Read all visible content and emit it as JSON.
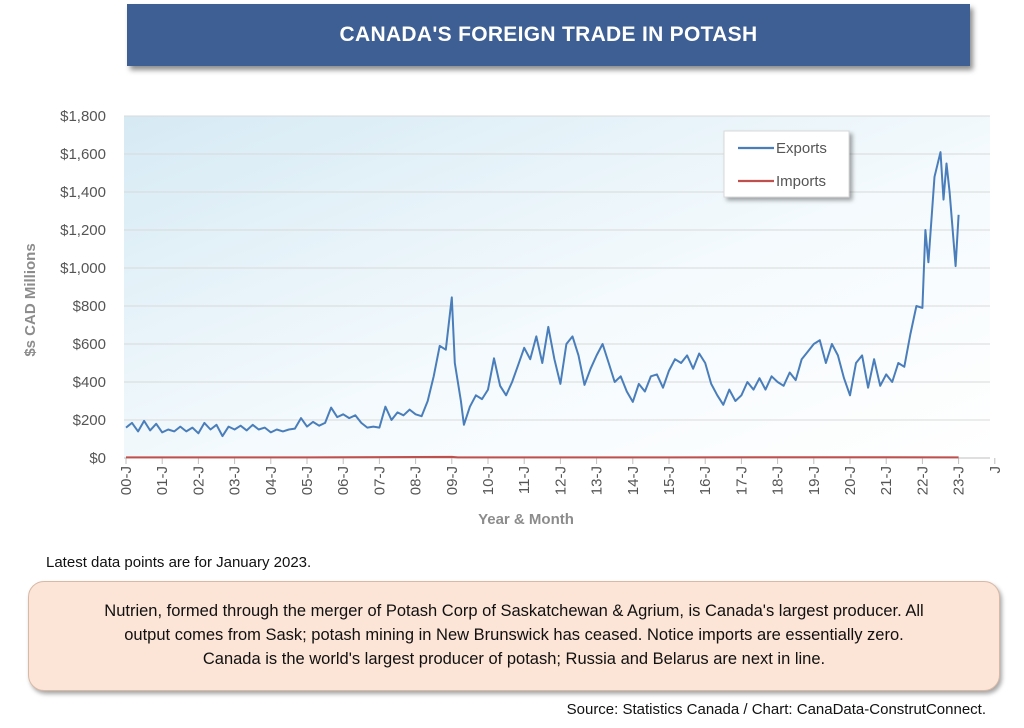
{
  "header": {
    "title": "CANADA'S FOREIGN TRADE IN POTASH"
  },
  "colors": {
    "exports": "#4a7ebb",
    "imports": "#c0504d",
    "banner": "#3d5f94",
    "callout_fill": "#fce4d6"
  },
  "chart_data": {
    "type": "line",
    "title": "CANADA'S FOREIGN TRADE IN POTASH",
    "xlabel": "Year & Month",
    "ylabel": "$s CAD Millions",
    "ylim": [
      0,
      1800
    ],
    "yticks": [
      0,
      200,
      400,
      600,
      800,
      1000,
      1200,
      1400,
      1600,
      1800
    ],
    "ytick_labels": [
      "$0",
      "$200",
      "$400",
      "$600",
      "$800",
      "$1,000",
      "$1,200",
      "$1,400",
      "$1,600",
      "$1,800"
    ],
    "xtick_labels": [
      "00-J",
      "01-J",
      "02-J",
      "03-J",
      "04-J",
      "05-J",
      "06-J",
      "07-J",
      "08-J",
      "09-J",
      "10-J",
      "11-J",
      "12-J",
      "13-J",
      "14-J",
      "15-J",
      "16-J",
      "17-J",
      "18-J",
      "19-J",
      "20-J",
      "21-J",
      "22-J",
      "23-J",
      "J"
    ],
    "grid": "horizontal",
    "legend_position": "top-right",
    "x_range": [
      "2000-01",
      "2023-01"
    ],
    "series": [
      {
        "name": "Exports",
        "color": "#4a7ebb",
        "points": [
          [
            "2000-01",
            160
          ],
          [
            "2000-03",
            185
          ],
          [
            "2000-05",
            140
          ],
          [
            "2000-07",
            195
          ],
          [
            "2000-09",
            145
          ],
          [
            "2000-11",
            180
          ],
          [
            "2001-01",
            135
          ],
          [
            "2001-03",
            150
          ],
          [
            "2001-05",
            140
          ],
          [
            "2001-07",
            165
          ],
          [
            "2001-09",
            140
          ],
          [
            "2001-11",
            160
          ],
          [
            "2002-01",
            130
          ],
          [
            "2002-03",
            185
          ],
          [
            "2002-05",
            150
          ],
          [
            "2002-07",
            175
          ],
          [
            "2002-09",
            115
          ],
          [
            "2002-11",
            165
          ],
          [
            "2003-01",
            150
          ],
          [
            "2003-03",
            170
          ],
          [
            "2003-05",
            145
          ],
          [
            "2003-07",
            175
          ],
          [
            "2003-09",
            150
          ],
          [
            "2003-11",
            160
          ],
          [
            "2004-01",
            135
          ],
          [
            "2004-03",
            150
          ],
          [
            "2004-05",
            140
          ],
          [
            "2004-07",
            150
          ],
          [
            "2004-09",
            155
          ],
          [
            "2004-11",
            210
          ],
          [
            "2005-01",
            165
          ],
          [
            "2005-03",
            190
          ],
          [
            "2005-05",
            170
          ],
          [
            "2005-07",
            185
          ],
          [
            "2005-09",
            265
          ],
          [
            "2005-11",
            215
          ],
          [
            "2006-01",
            230
          ],
          [
            "2006-03",
            210
          ],
          [
            "2006-05",
            225
          ],
          [
            "2006-07",
            185
          ],
          [
            "2006-09",
            160
          ],
          [
            "2006-11",
            165
          ],
          [
            "2007-01",
            160
          ],
          [
            "2007-03",
            270
          ],
          [
            "2007-05",
            200
          ],
          [
            "2007-07",
            240
          ],
          [
            "2007-09",
            225
          ],
          [
            "2007-11",
            255
          ],
          [
            "2008-01",
            230
          ],
          [
            "2008-03",
            220
          ],
          [
            "2008-05",
            300
          ],
          [
            "2008-07",
            430
          ],
          [
            "2008-09",
            590
          ],
          [
            "2008-11",
            570
          ],
          [
            "2009-01",
            845
          ],
          [
            "2009-02",
            500
          ],
          [
            "2009-04",
            300
          ],
          [
            "2009-05",
            175
          ],
          [
            "2009-07",
            270
          ],
          [
            "2009-09",
            330
          ],
          [
            "2009-11",
            310
          ],
          [
            "2010-01",
            360
          ],
          [
            "2010-03",
            525
          ],
          [
            "2010-05",
            380
          ],
          [
            "2010-07",
            330
          ],
          [
            "2010-09",
            400
          ],
          [
            "2010-11",
            490
          ],
          [
            "2011-01",
            580
          ],
          [
            "2011-03",
            520
          ],
          [
            "2011-05",
            640
          ],
          [
            "2011-07",
            500
          ],
          [
            "2011-09",
            690
          ],
          [
            "2011-11",
            520
          ],
          [
            "2012-01",
            390
          ],
          [
            "2012-03",
            600
          ],
          [
            "2012-05",
            640
          ],
          [
            "2012-07",
            540
          ],
          [
            "2012-09",
            385
          ],
          [
            "2012-11",
            470
          ],
          [
            "2013-01",
            540
          ],
          [
            "2013-03",
            600
          ],
          [
            "2013-05",
            500
          ],
          [
            "2013-07",
            400
          ],
          [
            "2013-09",
            430
          ],
          [
            "2013-11",
            350
          ],
          [
            "2014-01",
            295
          ],
          [
            "2014-03",
            390
          ],
          [
            "2014-05",
            350
          ],
          [
            "2014-07",
            430
          ],
          [
            "2014-09",
            440
          ],
          [
            "2014-11",
            370
          ],
          [
            "2015-01",
            460
          ],
          [
            "2015-03",
            520
          ],
          [
            "2015-05",
            500
          ],
          [
            "2015-07",
            540
          ],
          [
            "2015-09",
            470
          ],
          [
            "2015-11",
            550
          ],
          [
            "2016-01",
            500
          ],
          [
            "2016-03",
            390
          ],
          [
            "2016-05",
            330
          ],
          [
            "2016-07",
            280
          ],
          [
            "2016-09",
            360
          ],
          [
            "2016-11",
            300
          ],
          [
            "2017-01",
            330
          ],
          [
            "2017-03",
            400
          ],
          [
            "2017-05",
            360
          ],
          [
            "2017-07",
            420
          ],
          [
            "2017-09",
            360
          ],
          [
            "2017-11",
            430
          ],
          [
            "2018-01",
            400
          ],
          [
            "2018-03",
            380
          ],
          [
            "2018-05",
            450
          ],
          [
            "2018-07",
            410
          ],
          [
            "2018-09",
            520
          ],
          [
            "2018-11",
            560
          ],
          [
            "2019-01",
            600
          ],
          [
            "2019-03",
            620
          ],
          [
            "2019-05",
            500
          ],
          [
            "2019-07",
            600
          ],
          [
            "2019-09",
            540
          ],
          [
            "2019-11",
            420
          ],
          [
            "2020-01",
            330
          ],
          [
            "2020-03",
            500
          ],
          [
            "2020-05",
            540
          ],
          [
            "2020-07",
            370
          ],
          [
            "2020-09",
            520
          ],
          [
            "2020-11",
            380
          ],
          [
            "2021-01",
            440
          ],
          [
            "2021-03",
            400
          ],
          [
            "2021-05",
            500
          ],
          [
            "2021-07",
            480
          ],
          [
            "2021-09",
            650
          ],
          [
            "2021-11",
            800
          ],
          [
            "2022-01",
            790
          ],
          [
            "2022-02",
            1200
          ],
          [
            "2022-03",
            1030
          ],
          [
            "2022-05",
            1480
          ],
          [
            "2022-07",
            1610
          ],
          [
            "2022-08",
            1360
          ],
          [
            "2022-09",
            1550
          ],
          [
            "2022-10",
            1400
          ],
          [
            "2022-12",
            1010
          ],
          [
            "2023-01",
            1280
          ]
        ]
      },
      {
        "name": "Imports",
        "color": "#c0504d",
        "points": [
          [
            "2000-01",
            3
          ],
          [
            "2005-01",
            3
          ],
          [
            "2009-01",
            6
          ],
          [
            "2009-03",
            3
          ],
          [
            "2015-01",
            3
          ],
          [
            "2020-01",
            4
          ],
          [
            "2023-01",
            3
          ]
        ]
      }
    ]
  },
  "footer": {
    "note": "Latest data points are for January 2023.",
    "callout_lines": [
      "Nutrien, formed through the merger of Potash Corp of Saskatchewan & Agrium, is Canada's largest producer. All",
      "output comes from Sask; potash mining in New Brunswick has ceased. Notice imports are essentially zero.",
      "Canada is the world's largest producer of potash; Russia and Belarus are next in line."
    ],
    "source": "Source: Statistics Canada / Chart: CanaData-ConstrutConnect."
  }
}
